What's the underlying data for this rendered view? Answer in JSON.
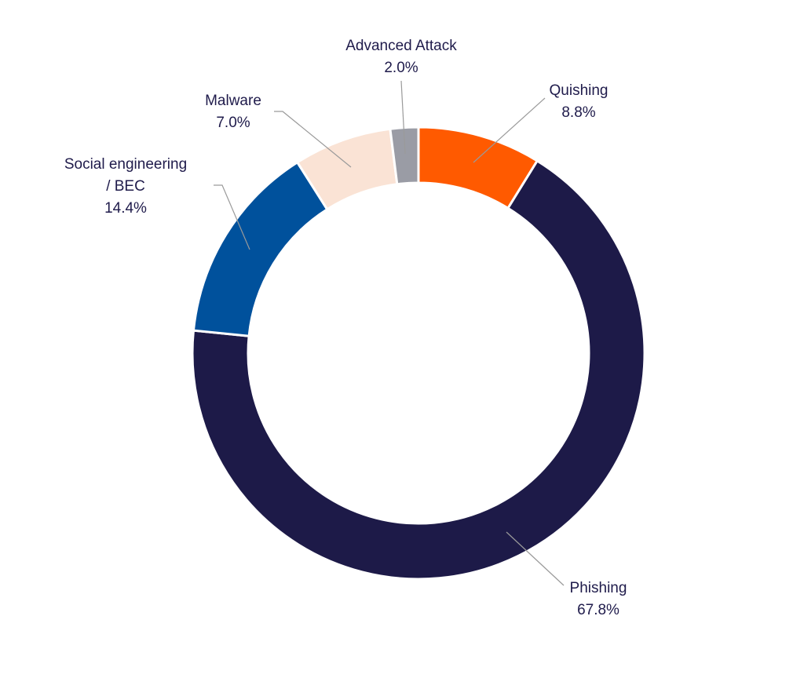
{
  "chart_data": {
    "type": "pie",
    "variant": "donut",
    "title": "",
    "slices": [
      {
        "name": "Quishing",
        "value": 8.8,
        "label": "8.8%",
        "color": "#ff5a00"
      },
      {
        "name": "Phishing",
        "value": 67.8,
        "label": "67.8%",
        "color": "#1d1a48"
      },
      {
        "name": "Social engineering / BEC",
        "name_lines": [
          "Social engineering",
          "/ BEC"
        ],
        "value": 14.4,
        "label": "14.4%",
        "color": "#00519c"
      },
      {
        "name": "Malware",
        "value": 7.0,
        "label": "7.0%",
        "color": "#fae3d5"
      },
      {
        "name": "Advanced Attack",
        "value": 2.0,
        "label": "2.0%",
        "color": "#9a9ca5"
      }
    ]
  }
}
